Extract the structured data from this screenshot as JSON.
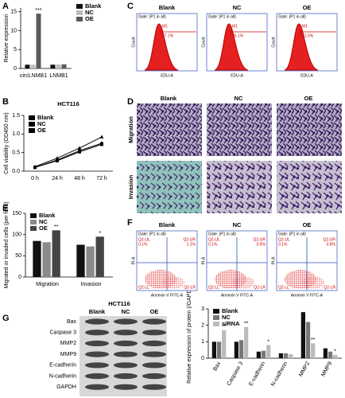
{
  "chart_data": [
    {
      "type": "bar",
      "panel": "A",
      "ylabel": "Relative expression",
      "categories": [
        "circLNMB1",
        "LNMB1"
      ],
      "series": [
        {
          "name": "Blank",
          "color": "#111111",
          "values": [
            1,
            1
          ]
        },
        {
          "name": "NC",
          "color": "#bdbdbd",
          "values": [
            1,
            1.05
          ]
        },
        {
          "name": "OE",
          "color": "#5a5a5a",
          "values": [
            14.5,
            1.1
          ],
          "significance": [
            "***",
            null
          ]
        }
      ],
      "ylim": [
        0,
        16
      ],
      "yticks": [
        0,
        5,
        10,
        15
      ],
      "legend": "outside right"
    },
    {
      "type": "line",
      "panel": "B",
      "title": "HCT116",
      "ylabel": "Cell viability (OD450 nm)",
      "categories": [
        "0 h",
        "24 h",
        "48 h",
        "72 h"
      ],
      "series": [
        {
          "name": "Blank",
          "color": "#000000",
          "marker": "circle",
          "values": [
            0.1,
            0.3,
            0.55,
            0.75
          ]
        },
        {
          "name": "NC",
          "color": "#000000",
          "marker": "square",
          "values": [
            0.1,
            0.28,
            0.52,
            0.72
          ]
        },
        {
          "name": "OE",
          "color": "#000000",
          "marker": "triangle",
          "values": [
            0.12,
            0.35,
            0.62,
            0.92
          ]
        }
      ],
      "ylim": [
        0,
        1.5
      ],
      "yticks": [
        {
          "value": 0,
          "label": "0.0"
        },
        {
          "value": 0.5,
          "label": "0.5"
        },
        {
          "value": 1,
          "label": "1.0"
        },
        {
          "value": 1.5,
          "label": "1.5"
        }
      ],
      "legend": "upper left"
    },
    {
      "type": "bar",
      "panel": "E",
      "ylabel": "Migrated or invaded cells (per field)",
      "categories": [
        "Migration",
        "Invasion"
      ],
      "series": [
        {
          "name": "Blank",
          "color": "#111111",
          "values": [
            85,
            76
          ]
        },
        {
          "name": "NC",
          "color": "#8a8a8a",
          "values": [
            82,
            72
          ]
        },
        {
          "name": "OE",
          "color": "#444444",
          "values": [
            110,
            95
          ],
          "significance": [
            "**",
            "*"
          ]
        }
      ],
      "ylim": [
        0,
        150
      ],
      "yticks": [
        0,
        50,
        100,
        150
      ],
      "legend": "upper left"
    },
    {
      "type": "bar",
      "ylabel": "Relative expression of protein (/GAPDH)",
      "categories": [
        "Bax",
        "Caspase 3",
        "E-cadherin",
        "N-cadherin",
        "MMP2",
        "MMP9"
      ],
      "series": [
        {
          "name": "Blank",
          "color": "#111111",
          "values": [
            1.0,
            1.0,
            0.4,
            0.3,
            2.8,
            0.6
          ]
        },
        {
          "name": "NC",
          "color": "#777777",
          "values": [
            1.0,
            1.1,
            0.45,
            0.3,
            2.2,
            0.4
          ]
        },
        {
          "name": "siRNA",
          "color": "#bbbbbb",
          "values": [
            1.7,
            1.9,
            0.8,
            0.25,
            0.9,
            0.2
          ],
          "significance": [
            "**",
            "**",
            "*",
            null,
            "**",
            "*"
          ]
        }
      ],
      "ylim": [
        0,
        3
      ],
      "yticks": [
        0,
        1,
        2,
        3
      ],
      "legend": "upper left"
    }
  ],
  "flow_cytometry": {
    "panel": "C",
    "gate": "Gate: (P1 in all)",
    "gate_name": "M1",
    "xlabel": "EDU-A",
    "ylabel": "Count",
    "samples": [
      {
        "name": "Blank",
        "percent": "37.1%"
      },
      {
        "name": "NC",
        "percent": "35.1%"
      },
      {
        "name": "OE",
        "percent": "41.5%"
      }
    ]
  },
  "micrographs": {
    "panel": "D",
    "columns": [
      "Blank",
      "NC",
      "OE"
    ],
    "rows": [
      "Migration",
      "Invasion"
    ]
  },
  "apoptosis": {
    "panel": "F",
    "gate": "Gate: (P1 in all)",
    "xlabel": "Annexin V FITC-A",
    "ylabel": "PI-A",
    "quadrants": [
      "Q2-UL",
      "Q2-UR",
      "Q2-LL",
      "Q2-LR"
    ],
    "samples": [
      {
        "name": "Blank",
        "ul": "0.1%",
        "ur": "1.1%"
      },
      {
        "name": "NC",
        "ul": "0.1%",
        "ur": "0.9%"
      },
      {
        "name": "OE",
        "ul": "0.1%",
        "ur": "0.8%"
      }
    ]
  },
  "western_blot": {
    "panel": "G",
    "title": "HCT116",
    "columns": [
      "Blank",
      "NC",
      "OE"
    ],
    "rows": [
      "Bax",
      "Caspase 3",
      "MMP2",
      "MMP9",
      "E-cadherin",
      "N-cadherin",
      "GAPDH"
    ]
  }
}
